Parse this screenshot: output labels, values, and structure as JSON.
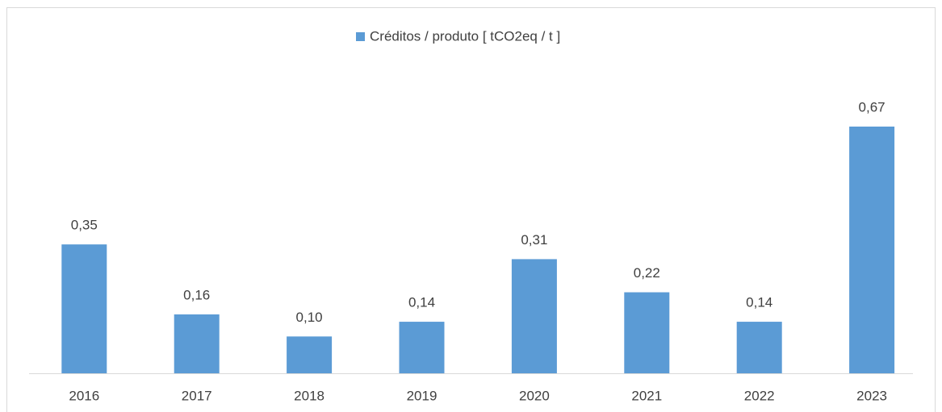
{
  "chart_data": {
    "type": "bar",
    "legend": "Créditos / produto [ tCO2eq / t ]",
    "categories": [
      "2016",
      "2017",
      "2018",
      "2019",
      "2020",
      "2021",
      "2022",
      "2023"
    ],
    "values": [
      0.35,
      0.16,
      0.1,
      0.14,
      0.31,
      0.22,
      0.14,
      0.67
    ],
    "value_labels": [
      "0,35",
      "0,16",
      "0,10",
      "0,14",
      "0,31",
      "0,22",
      "0,14",
      "0,67"
    ],
    "color": "#5b9bd5"
  }
}
